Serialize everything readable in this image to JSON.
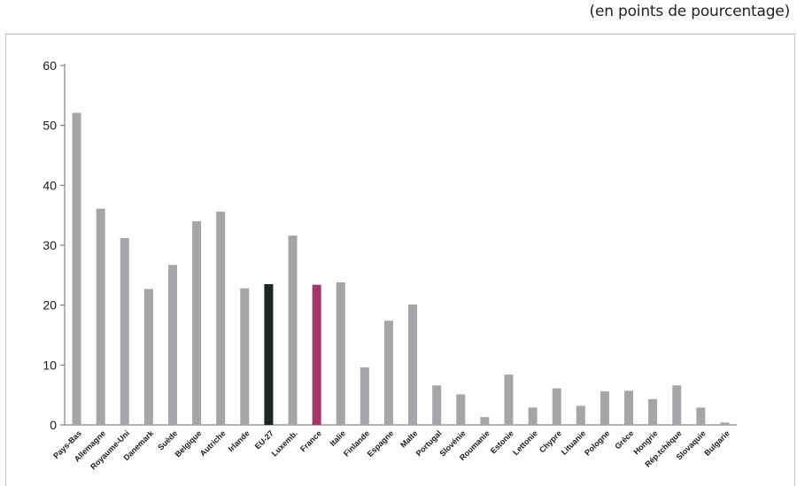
{
  "unit_note": "(en points de pourcentage)",
  "chart_data": {
    "type": "bar",
    "ylim": [
      0,
      60
    ],
    "yticks": [
      0,
      10,
      20,
      30,
      40,
      50,
      60
    ],
    "grid": false,
    "categories": [
      "Pays-Bas",
      "Allemagne",
      "Royaume-Uni",
      "Danemark",
      "Suède",
      "Belgique",
      "Autriche",
      "Irlande",
      "EU-27",
      "Luxemb.",
      "France",
      "Italie",
      "Finlande",
      "Espagne",
      "Malte",
      "Portugal",
      "Slovénie",
      "Roumanie",
      "Estonie",
      "Lettonie",
      "Chypre",
      "Lituanie",
      "Pologne",
      "Grèce",
      "Hongrie",
      "Rép.tchèque",
      "Slovaquie",
      "Bulgarie"
    ],
    "values": [
      52.1,
      36.1,
      31.2,
      22.7,
      26.7,
      34.0,
      35.6,
      22.8,
      23.5,
      31.6,
      23.4,
      23.8,
      9.6,
      17.4,
      20.1,
      6.6,
      5.1,
      1.3,
      8.4,
      2.9,
      6.1,
      3.2,
      5.6,
      5.7,
      4.3,
      6.6,
      2.9,
      0.4
    ],
    "colors": {
      "default": "#a5a5a7",
      "EU-27": "#1f2622",
      "France": "#a3356f"
    }
  }
}
